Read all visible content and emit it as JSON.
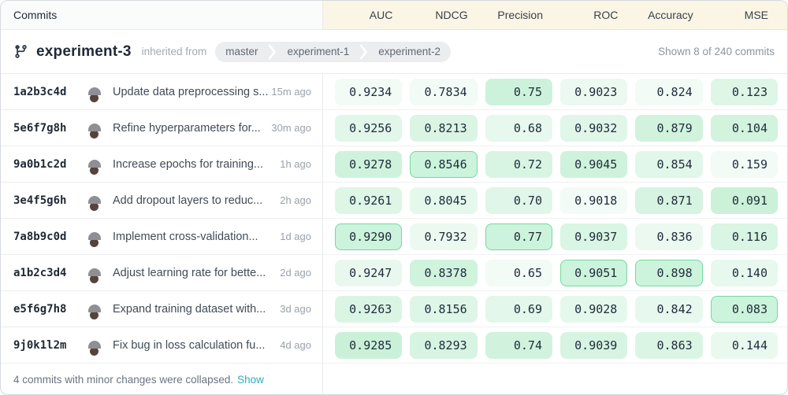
{
  "commits_panel": {
    "title": "Commits",
    "collapsed_note": "4 commits with minor changes were collapsed.",
    "show_link": "Show"
  },
  "experiment_header": {
    "name": "experiment-3",
    "inherited_label": "inherited from",
    "breadcrumbs": [
      "master",
      "experiment-1",
      "experiment-2"
    ],
    "shown_summary": "Shown 8 of 240 commits"
  },
  "metrics_table": {
    "columns": [
      {
        "label": "AUC",
        "lower_is_better": false
      },
      {
        "label": "NDCG",
        "lower_is_better": false
      },
      {
        "label": "Precision",
        "lower_is_better": false
      },
      {
        "label": "ROC",
        "lower_is_better": false
      },
      {
        "label": "Accuracy",
        "lower_is_better": false
      },
      {
        "label": "MSE",
        "lower_is_better": true
      }
    ]
  },
  "commits": [
    {
      "hash": "1a2b3c4d",
      "message": "Update data preprocessing s...",
      "time": "15m ago",
      "values": [
        0.9234,
        0.7834,
        0.75,
        0.9023,
        0.824,
        0.123
      ],
      "display": [
        "0.9234",
        "0.7834",
        "0.75",
        "0.9023",
        "0.824",
        "0.123"
      ]
    },
    {
      "hash": "5e6f7g8h",
      "message": "Refine hyperparameters for...",
      "time": "30m ago",
      "values": [
        0.9256,
        0.8213,
        0.68,
        0.9032,
        0.879,
        0.104
      ],
      "display": [
        "0.9256",
        "0.8213",
        "0.68",
        "0.9032",
        "0.879",
        "0.104"
      ]
    },
    {
      "hash": "9a0b1c2d",
      "message": "Increase epochs for training...",
      "time": "1h ago",
      "values": [
        0.9278,
        0.8546,
        0.72,
        0.9045,
        0.854,
        0.159
      ],
      "display": [
        "0.9278",
        "0.8546",
        "0.72",
        "0.9045",
        "0.854",
        "0.159"
      ]
    },
    {
      "hash": "3e4f5g6h",
      "message": "Add dropout layers to reduc...",
      "time": "2h ago",
      "values": [
        0.9261,
        0.8045,
        0.7,
        0.9018,
        0.871,
        0.091
      ],
      "display": [
        "0.9261",
        "0.8045",
        "0.70",
        "0.9018",
        "0.871",
        "0.091"
      ]
    },
    {
      "hash": "7a8b9c0d",
      "message": "Implement cross-validation...",
      "time": "1d ago",
      "values": [
        0.929,
        0.7932,
        0.77,
        0.9037,
        0.836,
        0.116
      ],
      "display": [
        "0.9290",
        "0.7932",
        "0.77",
        "0.9037",
        "0.836",
        "0.116"
      ]
    },
    {
      "hash": "a1b2c3d4",
      "message": "Adjust learning rate for bette...",
      "time": "2d ago",
      "values": [
        0.9247,
        0.8378,
        0.65,
        0.9051,
        0.898,
        0.14
      ],
      "display": [
        "0.9247",
        "0.8378",
        "0.65",
        "0.9051",
        "0.898",
        "0.140"
      ]
    },
    {
      "hash": "e5f6g7h8",
      "message": "Expand training dataset with...",
      "time": "3d ago",
      "values": [
        0.9263,
        0.8156,
        0.69,
        0.9028,
        0.842,
        0.083
      ],
      "display": [
        "0.9263",
        "0.8156",
        "0.69",
        "0.9028",
        "0.842",
        "0.083"
      ]
    },
    {
      "hash": "9j0k1l2m",
      "message": "Fix bug in loss calculation fu...",
      "time": "4d ago",
      "values": [
        0.9285,
        0.8293,
        0.74,
        0.9039,
        0.863,
        0.144
      ],
      "display": [
        "0.9285",
        "0.8293",
        "0.74",
        "0.9039",
        "0.863",
        "0.144"
      ]
    }
  ],
  "icons": {
    "branch": "git-branch-icon",
    "avatar": "user-avatar"
  },
  "colors": {
    "metric_header_bg": "#faf5e4",
    "cell_light": "#f2fbf6",
    "cell_strong": "#c6f0d5",
    "best_bg": "#ccf3db",
    "best_border": "#74d9a2",
    "show_link": "#27adc6",
    "crumb_bg": "#ecedef"
  }
}
